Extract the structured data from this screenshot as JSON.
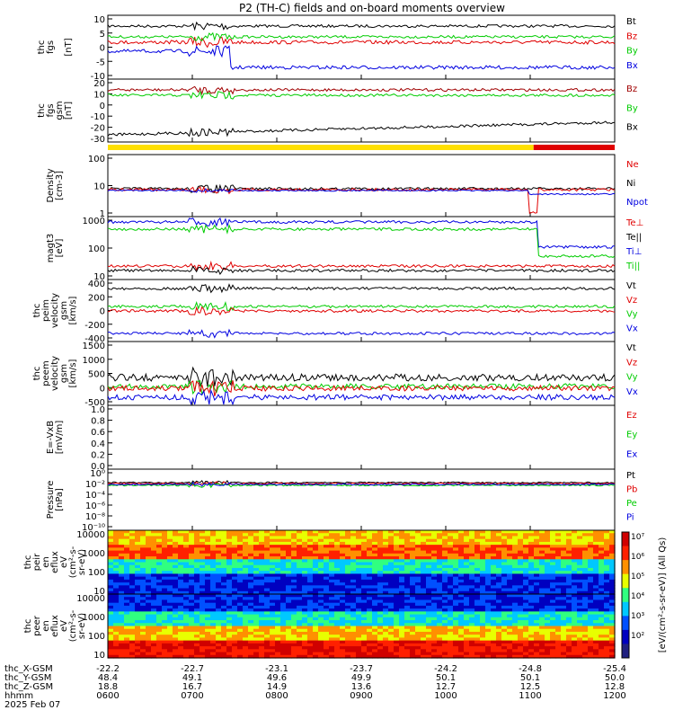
{
  "title": "P2 (TH-C) fields and on-board moments overview",
  "colors": {
    "black": "#000000",
    "red": "#e00000",
    "green": "#00cc00",
    "blue": "#0000e0",
    "darkred": "#a00000"
  },
  "chart_data": {
    "type": "line",
    "x_ticks": [
      "0600",
      "0700",
      "0800",
      "0900",
      "1000",
      "1100",
      "1200"
    ],
    "footer": {
      "labels": [
        "thc_X-GSM",
        "thc_Y-GSM",
        "thc_Z-GSM",
        "hhmm",
        "2025 Feb 07"
      ],
      "x_gsm": [
        "-22.2",
        "-22.7",
        "-23.1",
        "-23.7",
        "-24.2",
        "-24.8",
        "-25.4"
      ],
      "y_gsm": [
        "48.4",
        "49.1",
        "49.6",
        "49.9",
        "50.1",
        "50.1",
        "50.0"
      ],
      "z_gsm": [
        "18.8",
        "16.7",
        "14.9",
        "13.6",
        "12.7",
        "12.5",
        "12.8"
      ]
    },
    "panels": [
      {
        "id": "fgs",
        "ylabel": [
          "thc",
          "fgs",
          "",
          "[nT]"
        ],
        "yticks": [
          "10",
          "5",
          "0",
          "-5",
          "-10"
        ],
        "ylim": [
          -12,
          14
        ],
        "legend": [
          {
            "t": "Bt",
            "c": "black"
          },
          {
            "t": "Bz",
            "c": "red"
          },
          {
            "t": "By",
            "c": "green"
          },
          {
            "t": "Bx",
            "c": "blue"
          }
        ]
      },
      {
        "id": "fgs_gsm",
        "ylabel": [
          "thc",
          "fgs",
          "gsm",
          "[nT]"
        ],
        "yticks": [
          "20",
          "10",
          "0",
          "-10",
          "-20",
          "-30"
        ],
        "ylim": [
          -35,
          25
        ],
        "legend": [
          {
            "t": "Bz",
            "c": "darkred"
          },
          {
            "t": "By",
            "c": "green"
          },
          {
            "t": "Bx",
            "c": "black"
          }
        ]
      },
      {
        "id": "density",
        "ylabel": [
          "Density",
          "[cm-3]"
        ],
        "yticks": [
          "100",
          "10",
          "1"
        ],
        "ylim": [
          1,
          100
        ],
        "log": true,
        "legend": [
          {
            "t": "Ne",
            "c": "red"
          },
          {
            "t": "Ni",
            "c": "black"
          },
          {
            "t": "Npot",
            "c": "blue"
          }
        ]
      },
      {
        "id": "temp",
        "ylabel": [
          "magt3",
          "[eV]"
        ],
        "yticks": [
          "1000",
          "100",
          "10"
        ],
        "ylim": [
          10,
          1000
        ],
        "log": true,
        "legend": [
          {
            "t": "Te⊥",
            "c": "red"
          },
          {
            "t": "Te||",
            "c": "black"
          },
          {
            "t": "Ti⊥",
            "c": "blue"
          },
          {
            "t": "Ti||",
            "c": "green"
          }
        ]
      },
      {
        "id": "peim",
        "ylabel": [
          "thc",
          "peim",
          "velocity",
          "gsm",
          "[km/s]"
        ],
        "yticks": [
          "400",
          "200",
          "0",
          "-200",
          "-400"
        ],
        "ylim": [
          -450,
          450
        ],
        "legend": [
          {
            "t": "Vt",
            "c": "black"
          },
          {
            "t": "Vz",
            "c": "red"
          },
          {
            "t": "Vy",
            "c": "green"
          },
          {
            "t": "Vx",
            "c": "blue"
          }
        ]
      },
      {
        "id": "peem",
        "ylabel": [
          "thc",
          "peem",
          "velocity",
          "gsm",
          "[km/s]"
        ],
        "yticks": [
          "1500",
          "1000",
          "500",
          "0",
          "-500"
        ],
        "ylim": [
          -600,
          1800
        ],
        "legend": [
          {
            "t": "Vt",
            "c": "black"
          },
          {
            "t": "Vz",
            "c": "red"
          },
          {
            "t": "Vy",
            "c": "green"
          },
          {
            "t": "Vx",
            "c": "blue"
          }
        ]
      },
      {
        "id": "efield",
        "ylabel": [
          "E=-VxB",
          "[mV/m]"
        ],
        "yticks": [
          "1.0",
          "0.8",
          "0.6",
          "0.4",
          "0.2",
          "0.0"
        ],
        "ylim": [
          0,
          1
        ],
        "legend": [
          {
            "t": "Ez",
            "c": "red"
          },
          {
            "t": "Ey",
            "c": "green"
          },
          {
            "t": "Ex",
            "c": "blue"
          }
        ]
      },
      {
        "id": "pressure",
        "ylabel": [
          "Pressure",
          "[nPa]"
        ],
        "yticks": [
          "10⁰",
          "10⁻²",
          "10⁻⁴",
          "10⁻⁶",
          "10⁻⁸",
          "10⁻¹⁰"
        ],
        "ylim": [
          -10,
          0
        ],
        "log": true,
        "legend": [
          {
            "t": "Pt",
            "c": "black"
          },
          {
            "t": "Pb",
            "c": "red"
          },
          {
            "t": "Pe",
            "c": "green"
          },
          {
            "t": "Pi",
            "c": "blue"
          }
        ]
      },
      {
        "id": "peir",
        "ylabel": [
          "thc",
          "peir",
          "en",
          "eflux",
          "eV",
          "(cm²-s-",
          "sr-eV)"
        ],
        "yticks": [
          "10000",
          "1000",
          "100",
          "10"
        ],
        "type": "heatmap"
      },
      {
        "id": "peer",
        "ylabel": [
          "thc",
          "peer",
          "en",
          "eflux",
          "eV",
          "(cm²-s-",
          "sr-eV)"
        ],
        "yticks": [
          "10000",
          "1000",
          "100",
          "10"
        ],
        "type": "heatmap"
      }
    ],
    "colorbar": {
      "ticks": [
        "10⁷",
        "10⁶",
        "10⁵",
        "10⁴",
        "10³",
        "10²"
      ],
      "label": "[eV/(cm²-s-sr-eV)] (All Qs)"
    }
  }
}
